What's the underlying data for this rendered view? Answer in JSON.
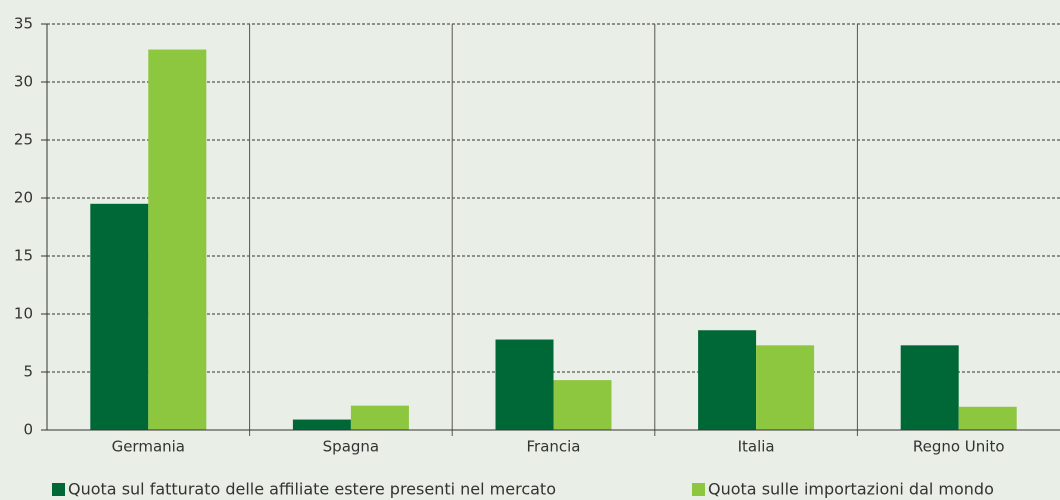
{
  "chart_data": {
    "type": "bar",
    "categories": [
      "Germania",
      "Spagna",
      "Francia",
      "Italia",
      "Regno Unito"
    ],
    "series": [
      {
        "name": "Quota sul fatturato delle affiliate estere presenti nel mercato",
        "color": "#006837",
        "values": [
          19.5,
          0.9,
          7.8,
          8.6,
          7.3
        ]
      },
      {
        "name": "Quota sulle importazioni dal mondo",
        "color": "#8dc63f",
        "values": [
          32.8,
          2.1,
          4.3,
          7.3,
          2.0
        ]
      }
    ],
    "ylim": [
      0,
      35
    ],
    "yticks": [
      0,
      5,
      10,
      15,
      20,
      25,
      30,
      35
    ],
    "grid": true
  }
}
